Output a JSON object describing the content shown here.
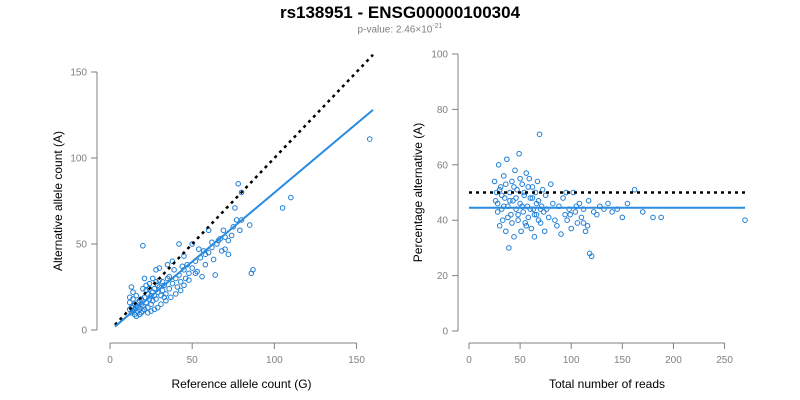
{
  "title": "rs138951 - ENSG00000100304",
  "subtitle": {
    "prefix": "p-value: 2.46×10",
    "exponent": "-21"
  },
  "colors": {
    "point": "#1f7fd6",
    "fit": "#2a8ce0",
    "reference": "#000000",
    "axis": "#808080"
  },
  "chart_data": [
    {
      "type": "scatter",
      "xlabel": "Reference allele count (G)",
      "ylabel": "Alternative allele count (A)",
      "xlim": [
        0,
        160
      ],
      "ylim": [
        0,
        150
      ],
      "xticks": [
        0,
        50,
        100,
        150
      ],
      "yticks": [
        0,
        50,
        100,
        150
      ],
      "grid": false,
      "fit_line": {
        "x": [
          3,
          160
        ],
        "y": [
          2,
          128
        ]
      },
      "reference_line": {
        "x": [
          3,
          160
        ],
        "y": [
          3,
          160
        ]
      },
      "points": [
        [
          12,
          12
        ],
        [
          13,
          13
        ],
        [
          14,
          11
        ],
        [
          15,
          15
        ],
        [
          16,
          14
        ],
        [
          17,
          16
        ],
        [
          18,
          12
        ],
        [
          19,
          18
        ],
        [
          20,
          14
        ],
        [
          21,
          19
        ],
        [
          13,
          10
        ],
        [
          14,
          18
        ],
        [
          16,
          20
        ],
        [
          18,
          17
        ],
        [
          20,
          11
        ],
        [
          22,
          16
        ],
        [
          23,
          21
        ],
        [
          24,
          18
        ],
        [
          25,
          20
        ],
        [
          26,
          22
        ],
        [
          12,
          16
        ],
        [
          14,
          14
        ],
        [
          15,
          12
        ],
        [
          17,
          13
        ],
        [
          19,
          15
        ],
        [
          20,
          24
        ],
        [
          22,
          26
        ],
        [
          23,
          13
        ],
        [
          25,
          15
        ],
        [
          27,
          24
        ],
        [
          28,
          18
        ],
        [
          29,
          22
        ],
        [
          30,
          25
        ],
        [
          31,
          20
        ],
        [
          32,
          28
        ],
        [
          33,
          26
        ],
        [
          34,
          21
        ],
        [
          35,
          30
        ],
        [
          36,
          24
        ],
        [
          38,
          27
        ],
        [
          40,
          30
        ],
        [
          41,
          25
        ],
        [
          42,
          32
        ],
        [
          43,
          28
        ],
        [
          45,
          35
        ],
        [
          46,
          30
        ],
        [
          47,
          38
        ],
        [
          48,
          33
        ],
        [
          50,
          36
        ],
        [
          52,
          40
        ],
        [
          53,
          34
        ],
        [
          55,
          42
        ],
        [
          57,
          46
        ],
        [
          58,
          38
        ],
        [
          60,
          45
        ],
        [
          62,
          48
        ],
        [
          63,
          41
        ],
        [
          65,
          50
        ],
        [
          67,
          53
        ],
        [
          68,
          46
        ],
        [
          70,
          54
        ],
        [
          72,
          52
        ],
        [
          75,
          60
        ],
        [
          77,
          64
        ],
        [
          79,
          58
        ],
        [
          80,
          64
        ],
        [
          78,
          85
        ],
        [
          80,
          80
        ],
        [
          70,
          47
        ],
        [
          72,
          44
        ],
        [
          60,
          58
        ],
        [
          62,
          51
        ],
        [
          50,
          50
        ],
        [
          45,
          43
        ],
        [
          42,
          50
        ],
        [
          38,
          40
        ],
        [
          35,
          38
        ],
        [
          30,
          36
        ],
        [
          28,
          35
        ],
        [
          26,
          30
        ],
        [
          24,
          27
        ],
        [
          22,
          23
        ],
        [
          21,
          30
        ],
        [
          20,
          49
        ],
        [
          18,
          9
        ],
        [
          16,
          8
        ],
        [
          15,
          9
        ],
        [
          14,
          22
        ],
        [
          13,
          25
        ],
        [
          12,
          19
        ],
        [
          86,
          33
        ],
        [
          87,
          35
        ],
        [
          110,
          77
        ],
        [
          105,
          71
        ],
        [
          158,
          111
        ],
        [
          85,
          61
        ],
        [
          64,
          32
        ],
        [
          56,
          31
        ],
        [
          52,
          33
        ],
        [
          48,
          29
        ],
        [
          45,
          26
        ],
        [
          43,
          23
        ],
        [
          40,
          21
        ],
        [
          37,
          19
        ],
        [
          34,
          17
        ],
        [
          31,
          15
        ],
        [
          29,
          13
        ],
        [
          27,
          12
        ],
        [
          25,
          11
        ],
        [
          23,
          10
        ],
        [
          21,
          12
        ],
        [
          19,
          10
        ],
        [
          17,
          11
        ],
        [
          24,
          24
        ],
        [
          26,
          17
        ],
        [
          32,
          23
        ],
        [
          36,
          31
        ],
        [
          39,
          35
        ],
        [
          44,
          37
        ],
        [
          54,
          47
        ],
        [
          58,
          44
        ],
        [
          66,
          52
        ],
        [
          69,
          58
        ],
        [
          74,
          55
        ],
        [
          76,
          71
        ],
        [
          30,
          29
        ],
        [
          33,
          19
        ],
        [
          28,
          28
        ],
        [
          27,
          20
        ],
        [
          29,
          26
        ]
      ]
    },
    {
      "type": "scatter",
      "xlabel": "Total number of reads",
      "ylabel": "Percentage alternative (A)",
      "xlim": [
        0,
        270
      ],
      "ylim": [
        0,
        100
      ],
      "xticks": [
        0,
        50,
        100,
        150,
        200,
        250
      ],
      "yticks": [
        0,
        20,
        40,
        60,
        80,
        100
      ],
      "grid": false,
      "fit_line": {
        "x": [
          0,
          270
        ],
        "y": [
          44.5,
          44.5
        ]
      },
      "reference_line": {
        "x": [
          0,
          270
        ],
        "y": [
          50,
          50
        ]
      },
      "points": [
        [
          25,
          54
        ],
        [
          27,
          50
        ],
        [
          28,
          46
        ],
        [
          29,
          60
        ],
        [
          30,
          38
        ],
        [
          31,
          52
        ],
        [
          32,
          44
        ],
        [
          33,
          40
        ],
        [
          34,
          56
        ],
        [
          35,
          48
        ],
        [
          36,
          36
        ],
        [
          37,
          62
        ],
        [
          38,
          45
        ],
        [
          39,
          30
        ],
        [
          40,
          50
        ],
        [
          41,
          42
        ],
        [
          42,
          54
        ],
        [
          43,
          47
        ],
        [
          44,
          34
        ],
        [
          45,
          58
        ],
        [
          46,
          44
        ],
        [
          47,
          51
        ],
        [
          48,
          40
        ],
        [
          49,
          64
        ],
        [
          50,
          46
        ],
        [
          51,
          36
        ],
        [
          52,
          53
        ],
        [
          53,
          43
        ],
        [
          54,
          49
        ],
        [
          55,
          39
        ],
        [
          56,
          57
        ],
        [
          57,
          45
        ],
        [
          58,
          41
        ],
        [
          59,
          55
        ],
        [
          60,
          48
        ],
        [
          61,
          37
        ],
        [
          62,
          52
        ],
        [
          63,
          44
        ],
        [
          64,
          34
        ],
        [
          65,
          50
        ],
        [
          66,
          42
        ],
        [
          67,
          54
        ],
        [
          68,
          47
        ],
        [
          69,
          71
        ],
        [
          70,
          39
        ],
        [
          71,
          45
        ],
        [
          72,
          51
        ],
        [
          73,
          43
        ],
        [
          74,
          36
        ],
        [
          75,
          49
        ],
        [
          76,
          44
        ],
        [
          78,
          41
        ],
        [
          80,
          53
        ],
        [
          82,
          46
        ],
        [
          84,
          40
        ],
        [
          86,
          38
        ],
        [
          88,
          45
        ],
        [
          90,
          35
        ],
        [
          92,
          48
        ],
        [
          94,
          42
        ],
        [
          96,
          40
        ],
        [
          98,
          44
        ],
        [
          100,
          37
        ],
        [
          102,
          50
        ],
        [
          104,
          43
        ],
        [
          106,
          39
        ],
        [
          108,
          46
        ],
        [
          110,
          41
        ],
        [
          112,
          44
        ],
        [
          114,
          36
        ],
        [
          116,
          38
        ],
        [
          118,
          28
        ],
        [
          120,
          27
        ],
        [
          122,
          43
        ],
        [
          125,
          42
        ],
        [
          128,
          45
        ],
        [
          132,
          44
        ],
        [
          136,
          46
        ],
        [
          140,
          43
        ],
        [
          145,
          44
        ],
        [
          150,
          41
        ],
        [
          155,
          46
        ],
        [
          162,
          51
        ],
        [
          170,
          43
        ],
        [
          180,
          41
        ],
        [
          188,
          41
        ],
        [
          270,
          40
        ],
        [
          26,
          47
        ],
        [
          28,
          43
        ],
        [
          30,
          51
        ],
        [
          32,
          49
        ],
        [
          34,
          45
        ],
        [
          36,
          53
        ],
        [
          38,
          41
        ],
        [
          40,
          47
        ],
        [
          42,
          39
        ],
        [
          44,
          52
        ],
        [
          46,
          48
        ],
        [
          48,
          42
        ],
        [
          50,
          55
        ],
        [
          52,
          45
        ],
        [
          54,
          50
        ],
        [
          56,
          38
        ],
        [
          58,
          52
        ],
        [
          60,
          44
        ],
        [
          62,
          48
        ],
        [
          64,
          42
        ],
        [
          66,
          46
        ],
        [
          68,
          40
        ],
        [
          70,
          44
        ],
        [
          95,
          50
        ],
        [
          99,
          42
        ],
        [
          105,
          45
        ],
        [
          112,
          39
        ],
        [
          117,
          47
        ]
      ]
    }
  ]
}
